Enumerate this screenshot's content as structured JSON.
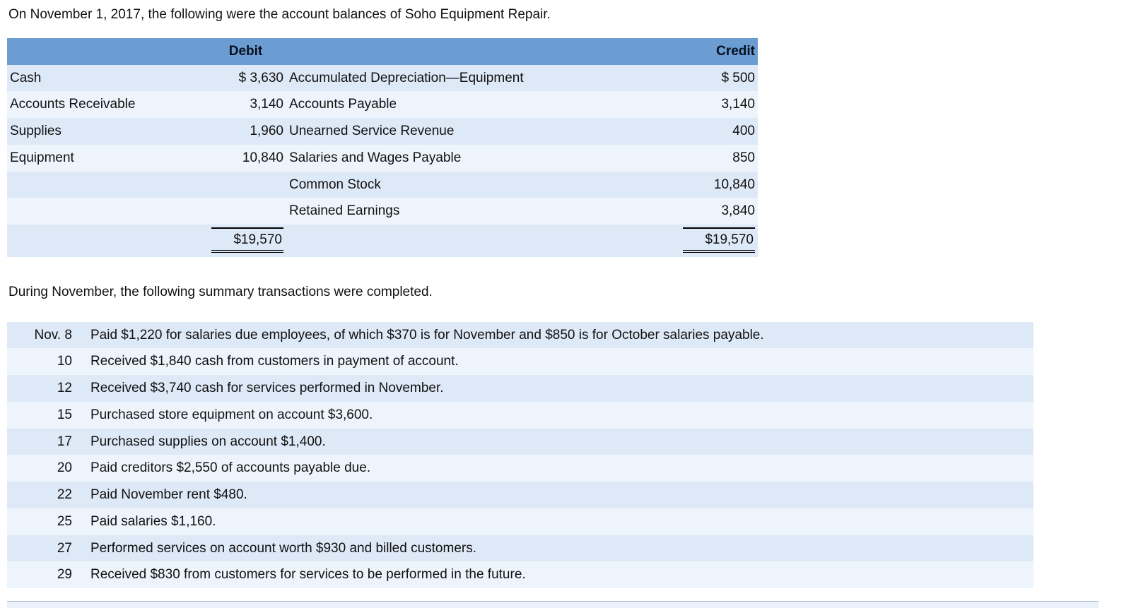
{
  "colors": {
    "header_bg": "#6b9cd2",
    "row_dark": "#dee9f7",
    "row_light": "#eef4fc"
  },
  "intro": "On November 1, 2017, the following were the account balances of Soho Equipment Repair.",
  "balances_table": {
    "debit_header": "Debit",
    "credit_header": "Credit",
    "rows": [
      {
        "debit_account": "Cash",
        "debit_amount": "$ 3,630",
        "credit_account": "Accumulated Depreciation—Equipment",
        "credit_amount": "$ 500"
      },
      {
        "debit_account": "Accounts Receivable",
        "debit_amount": "3,140",
        "credit_account": "Accounts Payable",
        "credit_amount": "3,140"
      },
      {
        "debit_account": "Supplies",
        "debit_amount": "1,960",
        "credit_account": "Unearned Service Revenue",
        "credit_amount": "400"
      },
      {
        "debit_account": "Equipment",
        "debit_amount": "10,840",
        "credit_account": "Salaries and Wages Payable",
        "credit_amount": "850"
      },
      {
        "debit_account": "",
        "debit_amount": "",
        "credit_account": "Common Stock",
        "credit_amount": "10,840"
      },
      {
        "debit_account": "",
        "debit_amount": "",
        "credit_account": "Retained Earnings",
        "credit_amount": "3,840"
      }
    ],
    "debit_total": "$19,570",
    "credit_total": "$19,570"
  },
  "middle_text": "During November, the following summary transactions were completed.",
  "transactions": [
    {
      "date": "Nov. 8",
      "description": "Paid $1,220 for salaries due employees, of which $370 is for November and $850 is for October salaries payable."
    },
    {
      "date": "10",
      "description": "Received $1,840 cash from customers in payment of account."
    },
    {
      "date": "12",
      "description": "Received $3,740 cash for services performed in November."
    },
    {
      "date": "15",
      "description": "Purchased store equipment on account $3,600."
    },
    {
      "date": "17",
      "description": "Purchased supplies on account $1,400."
    },
    {
      "date": "20",
      "description": "Paid creditors $2,550 of accounts payable due."
    },
    {
      "date": "22",
      "description": "Paid November rent $480."
    },
    {
      "date": "25",
      "description": "Paid salaries $1,160."
    },
    {
      "date": "27",
      "description": "Performed services on account worth $930 and billed customers."
    },
    {
      "date": "29",
      "description": "Received $830 from customers for services to be performed in the future."
    }
  ]
}
